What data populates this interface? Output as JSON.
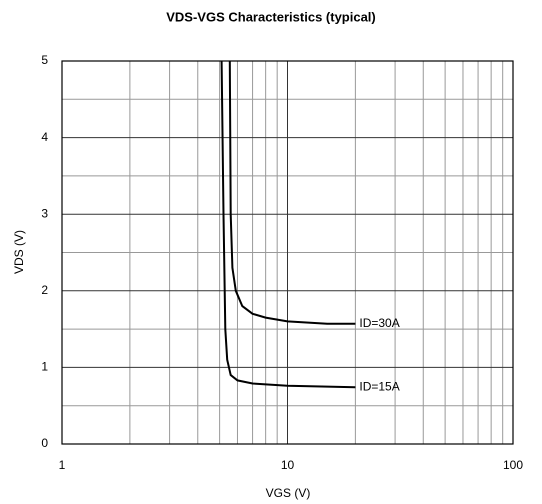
{
  "chart_data": {
    "type": "line",
    "title": "VDS-VGS Characteristics (typical)",
    "x_label": "VGS (V)",
    "y_label": "VDS (V)",
    "xscale": "log",
    "xlim": [
      1,
      100
    ],
    "ylim": [
      0,
      5
    ],
    "xticks": [
      1,
      10,
      100
    ],
    "yticks": [
      0,
      1,
      2,
      3,
      4,
      5
    ],
    "xminor": [
      2,
      3,
      4,
      5,
      6,
      7,
      8,
      9,
      20,
      30,
      40,
      50,
      60,
      70,
      80,
      90
    ],
    "yminor": [
      0.5,
      1.5,
      2.5,
      3.5,
      4.5
    ],
    "grid": true,
    "series": [
      {
        "name": "ID=30A",
        "color": "#000000",
        "x": [
          5.55,
          5.6,
          5.7,
          5.9,
          6.3,
          7,
          8,
          10,
          15,
          20
        ],
        "values": [
          5,
          3,
          2.3,
          2,
          1.8,
          1.7,
          1.65,
          1.6,
          1.57,
          1.57
        ]
      },
      {
        "name": "ID=15A",
        "color": "#000000",
        "x": [
          5.1,
          5.2,
          5.3,
          5.4,
          5.6,
          6,
          7,
          10,
          15,
          20
        ],
        "values": [
          5,
          3,
          1.5,
          1.1,
          0.9,
          0.83,
          0.79,
          0.76,
          0.75,
          0.74
        ]
      }
    ]
  }
}
